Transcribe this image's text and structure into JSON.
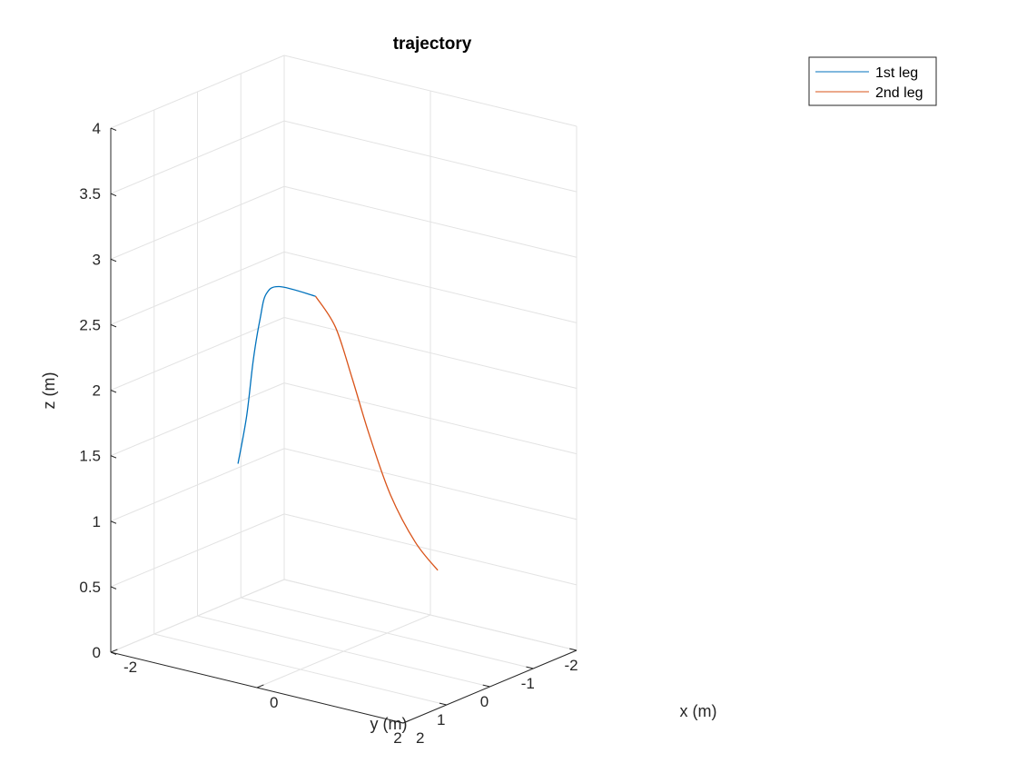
{
  "chart_data": {
    "type": "line",
    "title": "trajectory",
    "xlabel": "x (m)",
    "ylabel": "y (m)",
    "zlabel": "z (m)",
    "xlim": [
      -2,
      2
    ],
    "ylim": [
      -2,
      2
    ],
    "zlim": [
      0,
      4
    ],
    "x_ticks": [
      -2,
      0,
      2
    ],
    "y_ticks": [
      -2,
      -1,
      0,
      1,
      2
    ],
    "z_ticks": [
      0,
      0.5,
      1,
      1.5,
      2,
      2.5,
      3,
      3.5,
      4
    ],
    "x_tick_labels": [
      "-2",
      "0",
      "2"
    ],
    "y_tick_labels": [
      "-2",
      "-1",
      "0",
      "1",
      "2"
    ],
    "z_tick_labels": [
      "0",
      "0.5",
      "1",
      "1.5",
      "2",
      "2.5",
      "3",
      "3.5",
      "4"
    ],
    "grid": true,
    "legend_position": "top-right, outside",
    "series": [
      {
        "name": "1st leg",
        "color": "#0072BD",
        "points": [
          [
            -1.95,
            -0.85,
            1.05
          ],
          [
            -1.92,
            -1.0,
            1.4
          ],
          [
            -1.8,
            -0.95,
            1.85
          ],
          [
            -1.5,
            -0.6,
            2.25
          ],
          [
            -1.15,
            -0.15,
            2.55
          ],
          [
            -0.7,
            0.3,
            2.73
          ],
          [
            0.0,
            0.65,
            2.8
          ]
        ]
      },
      {
        "name": "2nd leg",
        "color": "#D95319",
        "points": [
          [
            0.0,
            0.65,
            2.8
          ],
          [
            0.6,
            1.2,
            2.72
          ],
          [
            1.1,
            1.65,
            2.45
          ],
          [
            1.45,
            1.85,
            2.1
          ],
          [
            1.65,
            1.7,
            1.65
          ],
          [
            1.75,
            1.3,
            1.25
          ],
          [
            1.85,
            0.95,
            1.0
          ]
        ]
      }
    ]
  }
}
